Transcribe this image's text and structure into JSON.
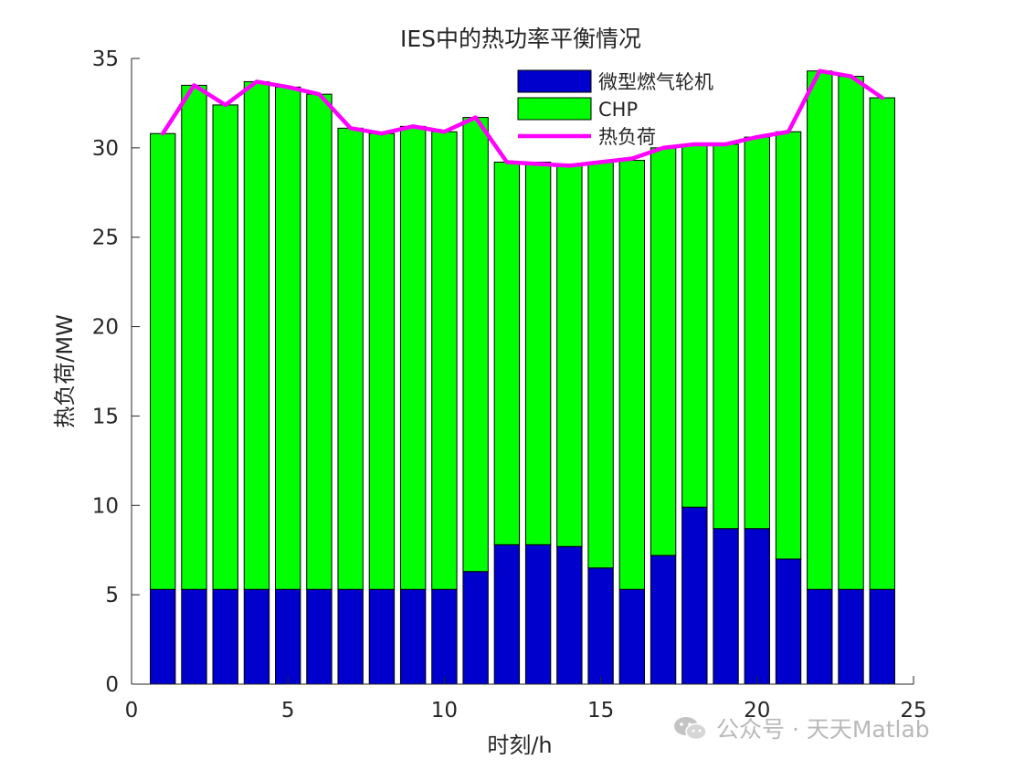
{
  "chart_data": {
    "type": "bar",
    "stacked": true,
    "title": "IES中的热功率平衡情况",
    "xlabel": "时刻/h",
    "ylabel": "热负荷/MW",
    "x": [
      1,
      2,
      3,
      4,
      5,
      6,
      7,
      8,
      9,
      10,
      11,
      12,
      13,
      14,
      15,
      16,
      17,
      18,
      19,
      20,
      21,
      22,
      23,
      24
    ],
    "xlim": [
      0,
      25
    ],
    "ylim": [
      0,
      35
    ],
    "xticks": [
      0,
      5,
      10,
      15,
      20,
      25
    ],
    "yticks": [
      0,
      5,
      10,
      15,
      20,
      25,
      30,
      35
    ],
    "grid": false,
    "legend_position": "top-center",
    "series": [
      {
        "name": "微型燃气轮机",
        "kind": "bar",
        "color": "#0000cd",
        "values": [
          5.3,
          5.3,
          5.3,
          5.3,
          5.3,
          5.3,
          5.3,
          5.3,
          5.3,
          5.3,
          6.3,
          7.8,
          7.8,
          7.7,
          6.5,
          5.3,
          7.2,
          9.9,
          8.7,
          8.7,
          7.0,
          5.3,
          5.3,
          5.3
        ]
      },
      {
        "name": "CHP",
        "kind": "bar",
        "color": "#00ff00",
        "values": [
          25.5,
          28.2,
          27.1,
          28.4,
          28.1,
          27.7,
          25.8,
          25.5,
          25.9,
          25.6,
          25.4,
          21.4,
          21.4,
          21.4,
          22.7,
          24.0,
          22.8,
          20.3,
          21.5,
          21.9,
          23.9,
          29.0,
          28.7,
          27.5
        ]
      },
      {
        "name": "热负荷",
        "kind": "line",
        "color": "#ff00ff",
        "values": [
          30.8,
          33.5,
          32.4,
          33.7,
          33.4,
          33.0,
          31.1,
          30.8,
          31.2,
          30.9,
          31.7,
          29.2,
          29.1,
          29.0,
          29.2,
          29.4,
          30.0,
          30.2,
          30.2,
          30.6,
          30.9,
          34.3,
          34.0,
          32.8
        ]
      }
    ]
  },
  "watermark": {
    "text": "公众号 · 天天Matlab"
  }
}
